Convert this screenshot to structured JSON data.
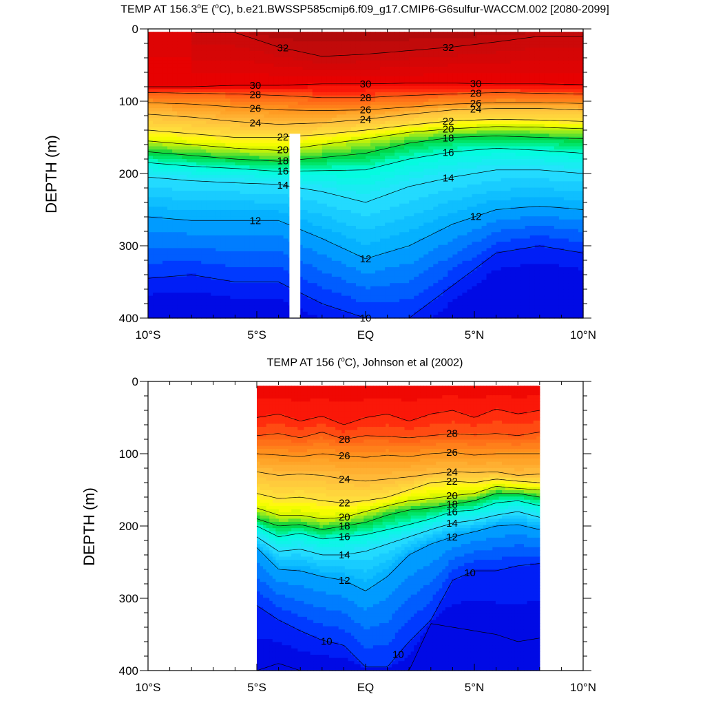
{
  "chart_data": [
    {
      "type": "heatmap",
      "subtype": "filled-contour",
      "title_prefix": "TEMP AT 156.3",
      "title_sup": "o",
      "title_mid": "E (",
      "title_sup2": "o",
      "title_suffix": "C), b.e21.BWSSP585cmip6.f09_g17.CMIP6-G6sulfur-WACCM.002 [2080-2099]",
      "ylabel": "DEPTH (m)",
      "x_ticks": [
        {
          "value": -10,
          "label": "10°S"
        },
        {
          "value": -5,
          "label": "5°S"
        },
        {
          "value": 0,
          "label": "EQ"
        },
        {
          "value": 5,
          "label": "5°N"
        },
        {
          "value": 10,
          "label": "10°N"
        }
      ],
      "y_ticks": [
        {
          "value": 0,
          "label": "0"
        },
        {
          "value": 100,
          "label": "100"
        },
        {
          "value": 200,
          "label": "200"
        },
        {
          "value": 300,
          "label": "300"
        },
        {
          "value": 400,
          "label": "400"
        }
      ],
      "xlim": [
        -10,
        10
      ],
      "ylim": [
        0,
        400
      ],
      "y_inverted": true,
      "data_extent": {
        "x": [
          -10,
          10
        ],
        "y": [
          4,
          400
        ]
      },
      "missing_column": {
        "x": [
          -3.5,
          -3.0
        ],
        "depth": [
          145,
          400
        ]
      },
      "contour_levels": [
        9,
        9.5,
        10,
        10.5,
        11,
        11.5,
        12,
        12.5,
        13,
        13.5,
        14,
        14.5,
        15,
        15.5,
        16,
        16.5,
        17,
        17.5,
        18,
        18.5,
        19,
        19.5,
        20,
        20.5,
        21,
        21.5,
        22,
        22.5,
        23,
        23.5,
        24,
        24.5,
        25,
        25.5,
        26,
        26.5,
        27,
        27.5,
        28,
        28.5,
        29,
        29.5,
        30,
        30.5,
        31,
        31.5,
        32,
        32.5
      ],
      "isotherm_depths": {
        "x": [
          -10,
          -8,
          -6,
          -4,
          -2,
          0,
          2,
          4,
          6,
          8,
          10
        ],
        "t32": [
          null,
          null,
          5,
          25,
          38,
          35,
          30,
          25,
          18,
          10,
          null
        ],
        "t30": [
          80,
          80,
          78,
          78,
          76,
          76,
          75,
          75,
          76,
          76,
          77
        ],
        "t28": [
          88,
          89,
          90,
          92,
          95,
          95,
          92,
          90,
          88,
          89,
          90
        ],
        "t26": [
          102,
          104,
          108,
          112,
          113,
          112,
          108,
          104,
          102,
          102,
          103
        ],
        "t24": [
          118,
          122,
          128,
          132,
          130,
          125,
          118,
          112,
          110,
          110,
          112
        ],
        "t22": [
          140,
          145,
          150,
          150,
          146,
          140,
          133,
          127,
          125,
          126,
          128
        ],
        "t20": [
          155,
          160,
          165,
          168,
          160,
          152,
          143,
          138,
          135,
          136,
          138
        ],
        "t18": [
          170,
          175,
          180,
          183,
          178,
          172,
          158,
          150,
          148,
          150,
          152
        ],
        "t16": [
          185,
          190,
          193,
          197,
          196,
          195,
          180,
          170,
          165,
          168,
          172
        ],
        "t14": [
          205,
          210,
          213,
          215,
          225,
          240,
          218,
          205,
          195,
          195,
          200
        ],
        "t12": [
          260,
          265,
          265,
          265,
          290,
          318,
          300,
          270,
          250,
          245,
          250
        ],
        "t10": [
          345,
          340,
          350,
          350,
          380,
          400,
          400,
          355,
          310,
          300,
          310
        ]
      },
      "contour_labels": [
        "32",
        "32",
        "30",
        "30",
        "30",
        "28",
        "28",
        "28",
        "26",
        "26",
        "26",
        "24",
        "24",
        "24",
        "22",
        "22",
        "20",
        "20",
        "18",
        "18",
        "16",
        "16",
        "14",
        "14",
        "12",
        "12",
        "12",
        "10"
      ]
    },
    {
      "type": "heatmap",
      "subtype": "filled-contour",
      "title_prefix": "TEMP AT 156 (",
      "title_sup": "o",
      "title_suffix": "C), Johnson et al (2002)",
      "ylabel": "DEPTH (m)",
      "x_ticks": [
        {
          "value": -10,
          "label": "10°S"
        },
        {
          "value": -5,
          "label": "5°S"
        },
        {
          "value": 0,
          "label": "EQ"
        },
        {
          "value": 5,
          "label": "5°N"
        },
        {
          "value": 10,
          "label": "10°N"
        }
      ],
      "y_ticks": [
        {
          "value": 0,
          "label": "0"
        },
        {
          "value": 100,
          "label": "100"
        },
        {
          "value": 200,
          "label": "200"
        },
        {
          "value": 300,
          "label": "300"
        },
        {
          "value": 400,
          "label": "400"
        }
      ],
      "xlim": [
        -10,
        10
      ],
      "ylim": [
        0,
        400
      ],
      "y_inverted": true,
      "data_extent": {
        "x": [
          -5,
          8
        ],
        "y": [
          6,
          400
        ]
      },
      "contour_levels": [
        9,
        9.5,
        10,
        10.5,
        11,
        11.5,
        12,
        12.5,
        13,
        13.5,
        14,
        14.5,
        15,
        15.5,
        16,
        16.5,
        17,
        17.5,
        18,
        18.5,
        19,
        19.5,
        20,
        20.5,
        21,
        21.5,
        22,
        22.5,
        23,
        23.5,
        24,
        24.5,
        25,
        25.5,
        26,
        26.5,
        27,
        27.5,
        28,
        28.5,
        29,
        29.5,
        30
      ],
      "isotherm_depths": {
        "x": [
          -5,
          -4,
          -3,
          -2,
          -1,
          0,
          1,
          2,
          3,
          4,
          5,
          6,
          7,
          8
        ],
        "t29": [
          50,
          45,
          55,
          48,
          60,
          50,
          45,
          55,
          45,
          40,
          50,
          38,
          45,
          40
        ],
        "t28": [
          75,
          72,
          78,
          70,
          80,
          75,
          76,
          78,
          75,
          72,
          74,
          72,
          75,
          70
        ],
        "t26": [
          100,
          102,
          104,
          100,
          103,
          105,
          102,
          104,
          100,
          98,
          102,
          100,
          100,
          100
        ],
        "t24": [
          125,
          130,
          128,
          130,
          135,
          138,
          135,
          132,
          128,
          125,
          126,
          125,
          130,
          128
        ],
        "t22": [
          155,
          162,
          160,
          165,
          168,
          165,
          160,
          150,
          140,
          138,
          140,
          135,
          138,
          140
        ],
        "t20": [
          175,
          185,
          185,
          190,
          188,
          180,
          172,
          165,
          162,
          158,
          155,
          145,
          148,
          150
        ],
        "t18": [
          190,
          200,
          198,
          205,
          200,
          195,
          185,
          178,
          175,
          170,
          165,
          155,
          155,
          160
        ],
        "t16": [
          200,
          215,
          210,
          218,
          215,
          212,
          205,
          198,
          190,
          180,
          178,
          168,
          165,
          172
        ],
        "t14": [
          215,
          235,
          232,
          240,
          240,
          235,
          225,
          215,
          205,
          196,
          192,
          185,
          180,
          188
        ],
        "t12": [
          230,
          260,
          262,
          270,
          275,
          290,
          270,
          240,
          225,
          215,
          208,
          200,
          198,
          205
        ],
        "t10": [
          310,
          330,
          345,
          358,
          365,
          395,
          395,
          360,
          330,
          275,
          262,
          262,
          255,
          252
        ],
        "t9": [
          400,
          390,
          400,
          400,
          400,
          400,
          400,
          400,
          335,
          340,
          345,
          350,
          360,
          355
        ]
      },
      "contour_labels": [
        "28",
        "28",
        "26",
        "26",
        "24",
        "24",
        "22",
        "22",
        "20",
        "20",
        "18",
        "18",
        "16",
        "16",
        "14",
        "14",
        "12",
        "12",
        "10",
        "10",
        "10"
      ]
    }
  ]
}
